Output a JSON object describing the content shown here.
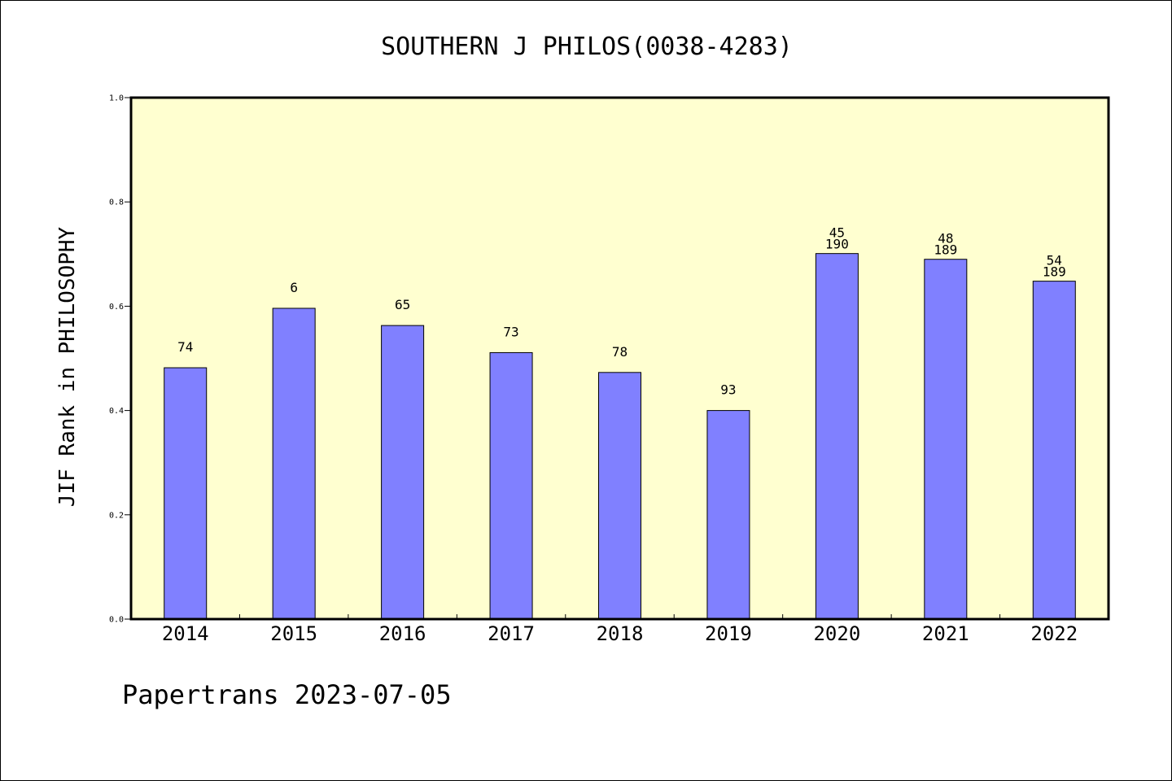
{
  "chart_data": {
    "type": "bar",
    "title": "SOUTHERN J PHILOS(0038-4283)",
    "xlabel": "",
    "ylabel": "JIF Rank in PHILOSOPHY",
    "ylim": [
      0,
      1
    ],
    "yticks": [
      "0.0",
      "0.2",
      "0.4",
      "0.6",
      "0.8",
      "1.0"
    ],
    "categories": [
      "2014",
      "2015",
      "2016",
      "2017",
      "2018",
      "2019",
      "2020",
      "2021",
      "2022"
    ],
    "values": [
      0.482,
      0.596,
      0.563,
      0.511,
      0.473,
      0.4,
      0.701,
      0.69,
      0.648
    ],
    "bar_labels": [
      [
        "74"
      ],
      [
        "6"
      ],
      [
        "65"
      ],
      [
        "73"
      ],
      [
        "78"
      ],
      [
        "93"
      ],
      [
        "45",
        "190"
      ],
      [
        "48",
        "189"
      ],
      [
        "54",
        "189"
      ]
    ],
    "plot_background": "#ffffd0",
    "bar_color": "#8080ff",
    "grid": false,
    "legend": "none"
  },
  "footer": "Papertrans 2023-07-05"
}
